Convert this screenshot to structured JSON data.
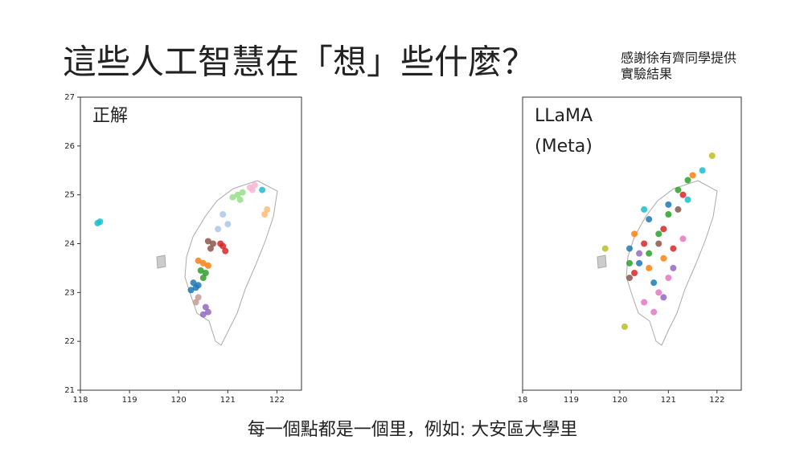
{
  "slide": {
    "title": "這些人工智慧在「想」些什麼？",
    "credit": [
      "感謝徐有齊同學提供",
      "實驗結果"
    ],
    "caption": "每一個點都是一個里，例如: 大安區大學里"
  },
  "chart_data": [
    {
      "type": "scatter",
      "annotation": [
        "正解"
      ],
      "xlim": [
        118,
        122.5
      ],
      "ylim": [
        21,
        27
      ],
      "xticks": [
        118,
        119,
        120,
        121,
        122
      ],
      "yticks": [
        21,
        22,
        23,
        24,
        25,
        26,
        27
      ],
      "series": [
        {
          "color": "#98df8a",
          "x": [
            121.2,
            121.3,
            121.1,
            121.25
          ],
          "y": [
            25.0,
            25.05,
            24.95,
            24.9
          ]
        },
        {
          "color": "#f7b6d2",
          "x": [
            121.5,
            121.55,
            121.45
          ],
          "y": [
            25.1,
            25.2,
            25.15
          ]
        },
        {
          "color": "#aec7e8",
          "x": [
            120.9,
            121.0,
            120.8
          ],
          "y": [
            24.6,
            24.4,
            24.3
          ]
        },
        {
          "color": "#8c564b",
          "x": [
            120.7,
            120.6,
            120.65
          ],
          "y": [
            24.0,
            24.05,
            23.9
          ]
        },
        {
          "color": "#d62728",
          "x": [
            120.9,
            120.85,
            120.95
          ],
          "y": [
            23.95,
            24.0,
            23.85
          ]
        },
        {
          "color": "#ff7f0e",
          "x": [
            120.5,
            120.4,
            120.6
          ],
          "y": [
            23.6,
            23.65,
            23.55
          ]
        },
        {
          "color": "#2ca02c",
          "x": [
            120.45,
            120.55,
            120.5
          ],
          "y": [
            23.45,
            23.4,
            23.3
          ]
        },
        {
          "color": "#1f77b4",
          "x": [
            120.3,
            120.35,
            120.4,
            120.25
          ],
          "y": [
            23.2,
            23.1,
            23.15,
            23.05
          ]
        },
        {
          "color": "#c49c94",
          "x": [
            120.35,
            120.4
          ],
          "y": [
            22.8,
            22.9
          ]
        },
        {
          "color": "#9467bd",
          "x": [
            120.55,
            120.6,
            120.5
          ],
          "y": [
            22.7,
            22.6,
            22.55
          ]
        },
        {
          "color": "#ffbb78",
          "x": [
            121.75,
            121.8
          ],
          "y": [
            24.6,
            24.7
          ]
        },
        {
          "color": "#17becf",
          "x": [
            118.4,
            118.35,
            121.7
          ],
          "y": [
            24.45,
            24.42,
            25.1
          ]
        }
      ]
    },
    {
      "type": "scatter",
      "annotation": [
        "LLaMA",
        "(Meta)"
      ],
      "xlim": [
        118,
        122.5
      ],
      "xticks": [
        {
          "value": 118,
          "label": "18"
        },
        119,
        120,
        121,
        122
      ],
      "ylim": [
        21,
        27
      ],
      "series": [
        {
          "color": "#2ca02c",
          "x": [
            121.2,
            121.4,
            120.6,
            120.2,
            121.0,
            120.8
          ],
          "y": [
            25.1,
            25.3,
            23.8,
            23.6,
            24.6,
            24.2
          ]
        },
        {
          "color": "#d62728",
          "x": [
            120.5,
            120.9,
            121.3,
            120.3,
            121.1
          ],
          "y": [
            24.0,
            24.3,
            25.0,
            23.4,
            23.9
          ]
        },
        {
          "color": "#1f77b4",
          "x": [
            120.4,
            120.7,
            120.2,
            121.0,
            120.6
          ],
          "y": [
            23.6,
            23.2,
            23.9,
            24.8,
            24.5
          ]
        },
        {
          "color": "#ff7f0e",
          "x": [
            120.6,
            121.5,
            120.3,
            120.9
          ],
          "y": [
            23.5,
            25.4,
            24.2,
            23.7
          ]
        },
        {
          "color": "#e377c2",
          "x": [
            120.8,
            120.5,
            121.0,
            120.7,
            121.3
          ],
          "y": [
            23.0,
            22.8,
            23.3,
            22.6,
            24.1
          ]
        },
        {
          "color": "#8c564b",
          "x": [
            120.2,
            120.8,
            121.2
          ],
          "y": [
            23.3,
            24.0,
            24.7
          ]
        },
        {
          "color": "#17becf",
          "x": [
            121.4,
            120.5,
            121.7
          ],
          "y": [
            24.9,
            24.7,
            25.5
          ]
        },
        {
          "color": "#9467bd",
          "x": [
            120.9,
            120.4,
            121.1
          ],
          "y": [
            22.9,
            23.8,
            23.5
          ]
        },
        {
          "color": "#bcbd22",
          "x": [
            119.7,
            121.9,
            120.1
          ],
          "y": [
            23.9,
            25.8,
            22.3
          ]
        }
      ]
    }
  ]
}
